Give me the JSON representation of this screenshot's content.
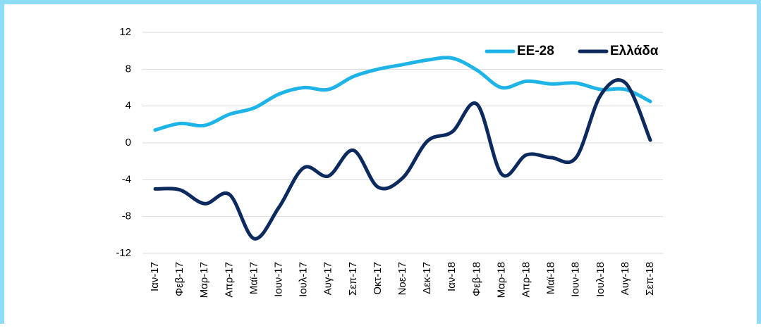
{
  "chart_data": {
    "type": "line",
    "categories": [
      "Ιαν-17",
      "Φεβ-17",
      "Μαρ-17",
      "Απρ-17",
      "Μαϊ-17",
      "Ιουν-17",
      "Ιουλ-17",
      "Αυγ-17",
      "Σεπ-17",
      "Οκτ-17",
      "Νοε-17",
      "Δεκ-17",
      "Ιαν-18",
      "Φεβ-18",
      "Μαρ-18",
      "Απρ-18",
      "Μαϊ-18",
      "Ιουν-18",
      "Ιουλ-18",
      "Αυγ-18",
      "Σεπ-18"
    ],
    "series": [
      {
        "name": "ΕΕ-28",
        "color": "#1fb4e8",
        "values": [
          1.4,
          2.1,
          1.9,
          3.1,
          3.8,
          5.3,
          6.0,
          5.8,
          7.2,
          8.0,
          8.5,
          9.0,
          9.2,
          7.9,
          6.0,
          6.7,
          6.4,
          6.5,
          5.8,
          5.8,
          4.5
        ]
      },
      {
        "name": "Ελλάδα",
        "color": "#0d2a5e",
        "values": [
          -5.0,
          -5.1,
          -6.6,
          -5.6,
          -10.4,
          -7.0,
          -2.7,
          -3.6,
          -0.8,
          -4.8,
          -3.8,
          0.2,
          1.2,
          4.2,
          -3.4,
          -1.3,
          -1.6,
          -1.6,
          5.2,
          6.5,
          0.3
        ]
      }
    ],
    "ylim": [
      -12,
      12
    ],
    "yticks": [
      -12,
      -8,
      -4,
      0,
      4,
      8,
      12
    ],
    "grid": true,
    "legend": "top-right"
  }
}
